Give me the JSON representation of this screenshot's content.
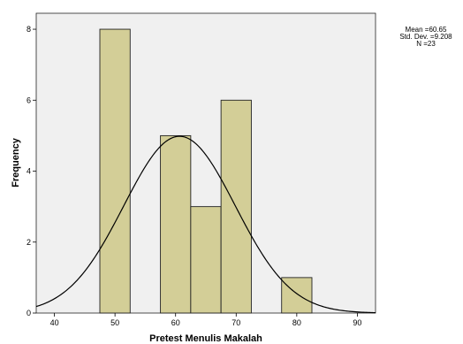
{
  "chart_data": {
    "type": "bar",
    "subtype": "histogram",
    "xlabel": "Pretest Menulis Makalah",
    "ylabel": "Frequency",
    "xlim": [
      37,
      93
    ],
    "ylim": [
      0,
      8.45
    ],
    "x_ticks": [
      40,
      50,
      60,
      70,
      80,
      90
    ],
    "y_ticks": [
      0,
      2,
      4,
      6,
      8
    ],
    "bin_width": 5,
    "bins": [
      {
        "start": 47.5,
        "end": 52.5,
        "count": 8
      },
      {
        "start": 57.5,
        "end": 62.5,
        "count": 5
      },
      {
        "start": 62.5,
        "end": 67.5,
        "count": 3
      },
      {
        "start": 67.5,
        "end": 72.5,
        "count": 6
      },
      {
        "start": 77.5,
        "end": 82.5,
        "count": 1
      }
    ],
    "normal_curve": {
      "mean": 60.65,
      "std_dev": 9.208,
      "n": 23
    },
    "grid": false,
    "colors": {
      "plot_background": "#f0f0f0",
      "bar_fill": "#d3ce97",
      "bar_stroke": "#222222",
      "curve": "#000000"
    }
  },
  "stats_box": {
    "mean_line": "Mean =60.65",
    "std_line": "Std. Dev. =9.208",
    "n_line": "N =23"
  }
}
